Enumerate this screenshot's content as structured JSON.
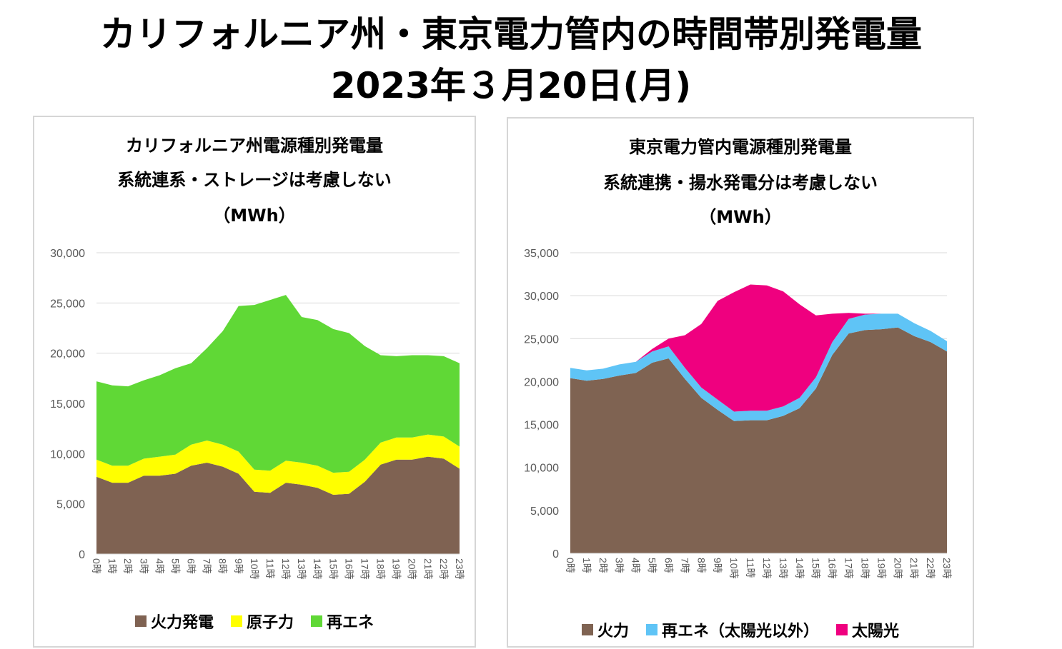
{
  "title": {
    "line1": "カリフォルニア州・東京電力管内の時間帯別発電量",
    "line2": "2023年３月20日(月)"
  },
  "chart_data": [
    {
      "type": "area",
      "stacked": true,
      "title_lines": [
        "カリフォルニア州電源種別発電量",
        "系統連系・ストレージは考慮しない",
        "（MWh）"
      ],
      "categories": [
        "0時",
        "1時",
        "2時",
        "3時",
        "4時",
        "5時",
        "6時",
        "7時",
        "8時",
        "9時",
        "10時",
        "11時",
        "12時",
        "13時",
        "14時",
        "15時",
        "16時",
        "17時",
        "18時",
        "19時",
        "20時",
        "21時",
        "22時",
        "23時"
      ],
      "yticks": [
        0,
        5000,
        10000,
        15000,
        20000,
        25000,
        30000
      ],
      "ytick_labels": [
        "0",
        "5,000",
        "10,000",
        "15,000",
        "20,000",
        "25,000",
        "30,000"
      ],
      "ylim": [
        0,
        30000
      ],
      "series": [
        {
          "name": "火力発電",
          "color": "#7f6252",
          "values": [
            7700,
            7100,
            7100,
            7800,
            7800,
            8000,
            8800,
            9100,
            8700,
            8000,
            6200,
            6100,
            7100,
            6900,
            6600,
            5900,
            6000,
            7200,
            8900,
            9400,
            9400,
            9700,
            9500,
            8500
          ]
        },
        {
          "name": "原子力",
          "color": "#ffff00",
          "values": [
            1700,
            1700,
            1700,
            1700,
            1900,
            1900,
            2100,
            2200,
            2200,
            2200,
            2200,
            2200,
            2200,
            2200,
            2200,
            2200,
            2200,
            2200,
            2200,
            2200,
            2200,
            2200,
            2200,
            2200
          ]
        },
        {
          "name": "再エネ",
          "color": "#60d836",
          "values": [
            7800,
            8000,
            7900,
            7800,
            8100,
            8600,
            8100,
            9200,
            11300,
            14500,
            16400,
            17000,
            16500,
            14500,
            14500,
            14300,
            13800,
            11300,
            8700,
            8100,
            8200,
            7900,
            8000,
            8300
          ]
        }
      ]
    },
    {
      "type": "area",
      "stacked": true,
      "title_lines": [
        "東京電力管内電源種別発電量",
        "系統連携・揚水発電分は考慮しない",
        "（MWh）"
      ],
      "categories": [
        "0時",
        "1時",
        "2時",
        "3時",
        "4時",
        "5時",
        "6時",
        "7時",
        "8時",
        "9時",
        "10時",
        "11時",
        "12時",
        "13時",
        "14時",
        "15時",
        "16時",
        "17時",
        "18時",
        "19時",
        "20時",
        "21時",
        "22時",
        "23時"
      ],
      "yticks": [
        0,
        5000,
        10000,
        15000,
        20000,
        25000,
        30000,
        35000
      ],
      "ytick_labels": [
        "0",
        "5,000",
        "10,000",
        "15,000",
        "20,000",
        "25,000",
        "30,000",
        "35,000"
      ],
      "ylim": [
        0,
        35000
      ],
      "series": [
        {
          "name": "火力",
          "color": "#7f6352",
          "values": [
            20400,
            20100,
            20300,
            20700,
            21000,
            22200,
            22700,
            20300,
            18100,
            16700,
            15400,
            15500,
            15500,
            16000,
            16900,
            19200,
            23100,
            25600,
            26000,
            26100,
            26300,
            25300,
            24600,
            23500
          ]
        },
        {
          "name": "再エネ（太陽光以外）",
          "color": "#5fc4f6",
          "values": [
            1200,
            1200,
            1200,
            1300,
            1300,
            1300,
            1400,
            1300,
            1200,
            1200,
            1100,
            1100,
            1100,
            1100,
            1200,
            1300,
            1500,
            1700,
            1800,
            1800,
            1600,
            1500,
            1300,
            1200
          ]
        },
        {
          "name": "太陽光",
          "color": "#ef007f",
          "values": [
            0,
            0,
            0,
            0,
            0,
            300,
            900,
            3800,
            7400,
            11500,
            13900,
            14700,
            14600,
            13400,
            10900,
            7200,
            3300,
            700,
            100,
            0,
            0,
            0,
            0,
            0
          ]
        }
      ]
    }
  ]
}
